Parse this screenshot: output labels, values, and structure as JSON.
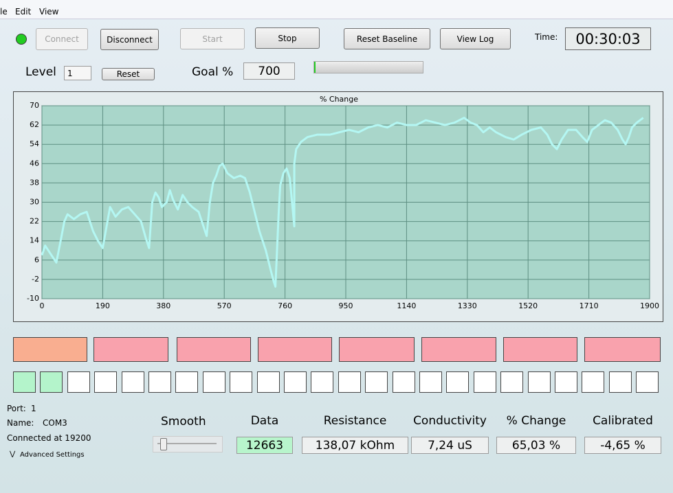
{
  "menu": [
    "le",
    "Edit",
    "View"
  ],
  "toolbar": {
    "connect": "Connect",
    "disconnect": "Disconnect",
    "start": "Start",
    "stop": "Stop",
    "reset_baseline": "Reset Baseline",
    "view_log": "View Log",
    "time_label": "Time:",
    "time": "00:30:03"
  },
  "level": {
    "label": "Level",
    "value": 1,
    "reset": "Reset"
  },
  "goal": {
    "label": "Goal %",
    "value": 700
  },
  "chart_data": {
    "type": "line",
    "title": "% Change",
    "color": "#b4f7f3",
    "grid": true,
    "xlim": [
      0,
      1900
    ],
    "ylim": [
      -10,
      70
    ],
    "xticks": [
      0,
      190,
      380,
      570,
      760,
      950,
      1140,
      1330,
      1520,
      1710,
      1900
    ],
    "yticks": [
      -10,
      -2,
      6,
      14,
      22,
      30,
      38,
      46,
      54,
      62,
      70
    ],
    "x": [
      0,
      10,
      30,
      45,
      60,
      70,
      80,
      100,
      120,
      140,
      150,
      160,
      175,
      190,
      213,
      230,
      250,
      270,
      290,
      310,
      325,
      335,
      345,
      355,
      365,
      375,
      390,
      400,
      410,
      425,
      440,
      455,
      470,
      490,
      505,
      515,
      525,
      535,
      545,
      555,
      565,
      580,
      600,
      620,
      635,
      650,
      665,
      680,
      700,
      715,
      725,
      730,
      740,
      745,
      755,
      765,
      775,
      789,
      789,
      795,
      810,
      830,
      860,
      900,
      930,
      960,
      990,
      1020,
      1050,
      1080,
      1110,
      1140,
      1170,
      1200,
      1230,
      1260,
      1290,
      1320,
      1340,
      1360,
      1380,
      1400,
      1420,
      1450,
      1475,
      1500,
      1530,
      1560,
      1580,
      1595,
      1610,
      1625,
      1645,
      1670,
      1690,
      1705,
      1720,
      1740,
      1760,
      1780,
      1800,
      1815,
      1825,
      1835,
      1845,
      1860,
      1880
    ],
    "values": [
      8,
      12,
      8,
      5,
      15,
      22,
      25,
      23,
      25,
      26,
      22,
      18,
      14,
      11,
      28,
      24,
      27,
      28,
      25,
      22,
      15,
      11,
      30,
      34,
      32,
      28,
      30,
      35,
      31,
      27,
      33,
      30,
      28,
      26,
      20,
      16,
      30,
      38,
      41,
      45,
      46,
      42,
      40,
      41,
      40,
      34,
      26,
      18,
      10,
      2,
      -3,
      -5,
      25,
      37,
      42,
      44,
      40,
      20,
      46,
      52,
      55,
      57,
      58,
      58,
      59,
      60,
      59,
      61,
      62,
      61,
      63,
      62,
      62,
      64,
      63,
      62,
      63,
      65,
      63,
      62,
      59,
      61,
      59,
      57,
      56,
      58,
      60,
      61,
      58,
      54,
      52,
      56,
      60,
      60,
      57,
      55,
      60,
      62,
      64,
      63,
      60,
      56,
      54,
      57,
      61,
      63,
      65
    ]
  },
  "status": {
    "port_label": "Port:",
    "port": 1,
    "name_label": "Name:",
    "name": "COM3",
    "connection": "Connected at 19200",
    "advanced": "Advanced Settings"
  },
  "smooth_label": "Smooth",
  "readouts": [
    {
      "label": "Data",
      "value": 12663
    },
    {
      "label": "Resistance",
      "value": "138,07 kOhm"
    },
    {
      "label": "Conductivity",
      "value": "7,24 uS"
    },
    {
      "label": "% Change",
      "value": "65,03 %"
    },
    {
      "label": "Calibrated",
      "value": "-4,65 %"
    }
  ]
}
